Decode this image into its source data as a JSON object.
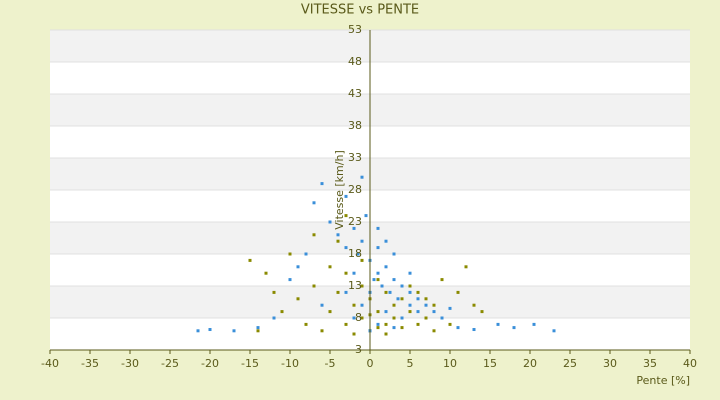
{
  "chart_data": {
    "type": "scatter",
    "title": "VITESSE vs PENTE",
    "x_label": "Pente [%]",
    "y_label": "Vitesse [km/h]",
    "xlim": [
      -40,
      40
    ],
    "xticks": [
      -40,
      -35,
      -30,
      -25,
      -20,
      -15,
      -10,
      -5,
      0,
      5,
      10,
      15,
      20,
      25,
      30,
      35,
      40
    ],
    "ylim": [
      3,
      53
    ],
    "yticks": [
      3,
      8,
      13,
      18,
      23,
      28,
      33,
      38,
      43,
      48,
      53
    ],
    "grid_bands": true,
    "series": [
      {
        "color": "#8a8a00",
        "x": [
          -15,
          -13,
          -12,
          -11,
          -10,
          -9,
          -8,
          -7,
          -6,
          -5,
          -5,
          -4,
          -4,
          -3,
          -3,
          -2,
          -2,
          -1,
          -1,
          0,
          0,
          1,
          1,
          2,
          2,
          3,
          3,
          4,
          4,
          5,
          6,
          6,
          7,
          8,
          8,
          9,
          10,
          11,
          12,
          13,
          14,
          -14,
          -7,
          -3,
          0,
          2,
          5,
          7,
          -1,
          1
        ],
        "values": [
          17,
          15,
          12,
          9,
          18,
          11,
          7,
          13,
          6,
          16,
          9,
          20,
          12,
          7,
          15,
          10,
          5.5,
          13,
          8,
          11,
          6,
          9,
          14,
          7,
          12,
          8,
          10,
          6.5,
          11,
          9,
          7,
          12,
          8,
          10,
          6,
          14,
          7,
          12,
          16,
          10,
          9,
          6,
          21,
          24,
          8.5,
          5.5,
          13,
          11,
          17,
          6.5
        ]
      },
      {
        "color": "#3a8fd9",
        "x": [
          -21.5,
          -20,
          -17,
          -14,
          -12,
          -9,
          -7,
          -6,
          -5,
          -4,
          -3,
          -3,
          -2,
          -2,
          -1.5,
          -1,
          -1,
          -0.5,
          0,
          0,
          0.5,
          1,
          1,
          1.5,
          2,
          2,
          2.5,
          3,
          3,
          3.5,
          4,
          4,
          5,
          5,
          6,
          6,
          7,
          8,
          9,
          10,
          11,
          13,
          16,
          18,
          20.5,
          23,
          -3,
          -1,
          1,
          2,
          -8,
          -10,
          -6,
          0,
          1,
          -2,
          3,
          5
        ],
        "values": [
          6,
          6.2,
          6,
          6.5,
          8,
          16,
          26,
          29,
          23,
          21,
          19,
          12,
          22,
          15,
          18,
          20,
          10,
          24,
          17,
          6,
          14,
          19,
          7,
          13,
          16,
          9,
          12,
          14,
          6.5,
          11,
          13,
          8,
          10,
          12,
          9,
          11,
          10,
          9,
          8,
          9.5,
          6.5,
          6.2,
          7,
          6.5,
          7,
          6,
          27,
          30,
          22,
          20,
          18,
          14,
          10,
          12,
          15,
          8,
          18,
          15
        ]
      }
    ]
  }
}
